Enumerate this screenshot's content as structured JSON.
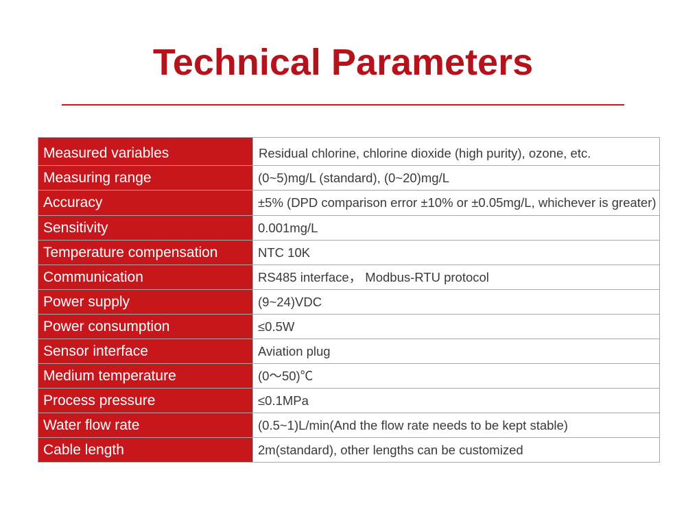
{
  "title": "Technical Parameters",
  "rows": [
    {
      "label": "Measured variables",
      "value": "Residual chlorine, chlorine dioxide (high purity), ozone, etc."
    },
    {
      "label": "Measuring range",
      "value": "(0~5)mg/L (standard), (0~20)mg/L"
    },
    {
      "label": "Accuracy",
      "value": "±5% (DPD comparison error ±10% or ±0.05mg/L, whichever is greater)"
    },
    {
      "label": "Sensitivity",
      "value": "0.001mg/L"
    },
    {
      "label": "Temperature compensation",
      "value": "NTC 10K"
    },
    {
      "label": "Communication",
      "value": "RS485 interface， Modbus-RTU protocol"
    },
    {
      "label": "Power supply",
      "value": "(9~24)VDC"
    },
    {
      "label": "Power consumption",
      "value": "≤0.5W"
    },
    {
      "label": "Sensor interface",
      "value": "Aviation plug"
    },
    {
      "label": "Medium temperature",
      "value": "(0〜50)℃"
    },
    {
      "label": "Process pressure",
      "value": "≤0.1MPa"
    },
    {
      "label": "Water flow rate",
      "value": "(0.5~1)L/min(And the flow rate needs to be kept stable)"
    },
    {
      "label": "Cable length",
      "value": "2m(standard), other lengths can be customized"
    }
  ]
}
